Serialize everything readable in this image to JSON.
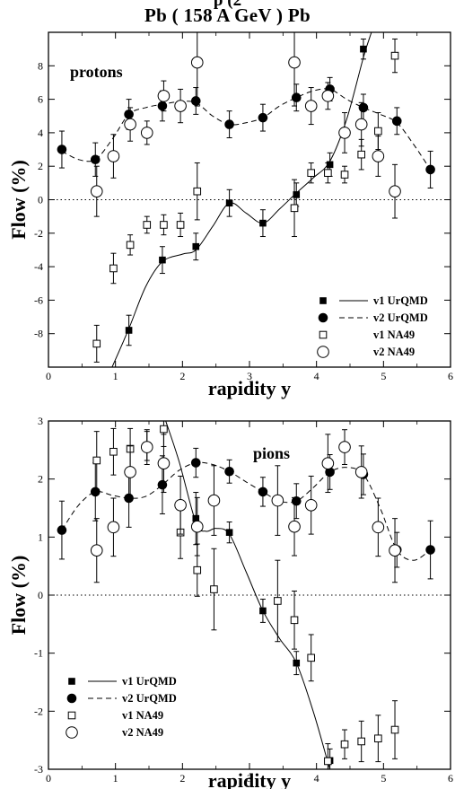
{
  "header": {
    "cut_text": "p        (2",
    "title": "Pb ( 158 A GeV ) Pb"
  },
  "chart_data": [
    {
      "type": "scatter",
      "title": "",
      "annotation": "protons",
      "xlabel": "rapidity y",
      "ylabel": "Flow (%)",
      "xlim": [
        0,
        6
      ],
      "ylim": [
        -10,
        10
      ],
      "xticks": [
        0,
        1,
        2,
        3,
        4,
        5,
        6
      ],
      "yticks": [
        -8,
        -6,
        -4,
        -2,
        0,
        2,
        4,
        6,
        8
      ],
      "zero_line": true,
      "legend_position": "bottom-right",
      "series": [
        {
          "name": "v1 UrQMD",
          "marker": "filled-square",
          "line": "solid",
          "points": [
            {
              "x": 1.2,
              "y": -7.8,
              "err": 0.9
            },
            {
              "x": 1.7,
              "y": -3.6,
              "err": 0.8
            },
            {
              "x": 2.2,
              "y": -2.8,
              "err": 0.8
            },
            {
              "x": 2.7,
              "y": -0.2,
              "err": 0.8
            },
            {
              "x": 3.2,
              "y": -1.4,
              "err": 0.8
            },
            {
              "x": 3.7,
              "y": 0.3,
              "err": 0.7
            },
            {
              "x": 4.2,
              "y": 2.1,
              "err": 0.7
            },
            {
              "x": 4.7,
              "y": 9.0,
              "err": 0.6
            }
          ],
          "curve": [
            [
              0.95,
              -10
            ],
            [
              1.2,
              -7.7
            ],
            [
              1.45,
              -5.2
            ],
            [
              1.7,
              -3.7
            ],
            [
              2.0,
              -3.25
            ],
            [
              2.2,
              -3.0
            ],
            [
              2.45,
              -1.6
            ],
            [
              2.7,
              -0.2
            ],
            [
              2.95,
              -0.8
            ],
            [
              3.2,
              -1.4
            ],
            [
              3.45,
              -0.55
            ],
            [
              3.7,
              0.4
            ],
            [
              3.95,
              1.3
            ],
            [
              4.2,
              2.3
            ],
            [
              4.45,
              4.8
            ],
            [
              4.7,
              8.5
            ],
            [
              4.82,
              10
            ]
          ]
        },
        {
          "name": "v2 UrQMD",
          "marker": "filled-circle",
          "line": "dashed",
          "points": [
            {
              "x": 0.2,
              "y": 3.0,
              "err": 1.1
            },
            {
              "x": 0.7,
              "y": 2.4,
              "err": 1.0
            },
            {
              "x": 1.2,
              "y": 5.1,
              "err": 0.9
            },
            {
              "x": 1.7,
              "y": 5.6,
              "err": 0.9
            },
            {
              "x": 2.2,
              "y": 5.9,
              "err": 0.8
            },
            {
              "x": 2.7,
              "y": 4.5,
              "err": 0.8
            },
            {
              "x": 3.2,
              "y": 4.9,
              "err": 0.8
            },
            {
              "x": 3.7,
              "y": 6.1,
              "err": 0.8
            },
            {
              "x": 4.2,
              "y": 6.6,
              "err": 0.7
            },
            {
              "x": 4.7,
              "y": 5.5,
              "err": 0.8
            },
            {
              "x": 5.2,
              "y": 4.7,
              "err": 0.8
            },
            {
              "x": 5.7,
              "y": 1.8,
              "err": 1.1
            }
          ],
          "curve": [
            [
              0.2,
              2.9
            ],
            [
              0.45,
              2.4
            ],
            [
              0.7,
              2.4
            ],
            [
              0.95,
              3.6
            ],
            [
              1.2,
              5.1
            ],
            [
              1.45,
              5.5
            ],
            [
              1.7,
              5.7
            ],
            [
              1.95,
              5.85
            ],
            [
              2.2,
              5.8
            ],
            [
              2.45,
              5.0
            ],
            [
              2.7,
              4.5
            ],
            [
              2.95,
              4.6
            ],
            [
              3.2,
              4.9
            ],
            [
              3.45,
              5.6
            ],
            [
              3.7,
              6.1
            ],
            [
              3.95,
              6.5
            ],
            [
              4.2,
              6.6
            ],
            [
              4.45,
              6.0
            ],
            [
              4.7,
              5.5
            ],
            [
              4.95,
              5.1
            ],
            [
              5.2,
              4.6
            ],
            [
              5.45,
              3.3
            ],
            [
              5.7,
              1.8
            ]
          ]
        },
        {
          "name": "v1 NA49",
          "marker": "open-square",
          "line": "none",
          "points": [
            {
              "x": 0.72,
              "y": -8.6,
              "err": 1.1
            },
            {
              "x": 0.97,
              "y": -4.1,
              "err": 0.9
            },
            {
              "x": 1.22,
              "y": -2.7,
              "err": 0.6
            },
            {
              "x": 1.47,
              "y": -1.5,
              "err": 0.5
            },
            {
              "x": 1.72,
              "y": -1.5,
              "err": 0.6
            },
            {
              "x": 1.97,
              "y": -1.5,
              "err": 0.7
            },
            {
              "x": 2.22,
              "y": 0.5,
              "err": 1.7
            },
            {
              "x": 3.67,
              "y": -0.5,
              "err": 1.7
            },
            {
              "x": 3.92,
              "y": 1.6,
              "err": 0.6
            },
            {
              "x": 4.17,
              "y": 1.6,
              "err": 0.6
            },
            {
              "x": 4.42,
              "y": 1.5,
              "err": 0.5
            },
            {
              "x": 4.67,
              "y": 2.7,
              "err": 0.9
            },
            {
              "x": 4.92,
              "y": 4.1,
              "err": 1.1
            },
            {
              "x": 5.17,
              "y": 8.6,
              "err": 1.0
            }
          ]
        },
        {
          "name": "v2 NA49",
          "marker": "open-circle",
          "line": "none",
          "points": [
            {
              "x": 0.72,
              "y": 0.5,
              "err": 1.5
            },
            {
              "x": 0.97,
              "y": 2.6,
              "err": 1.3
            },
            {
              "x": 1.22,
              "y": 4.5,
              "err": 1.0
            },
            {
              "x": 1.47,
              "y": 4.0,
              "err": 0.7
            },
            {
              "x": 1.72,
              "y": 6.2,
              "err": 0.9
            },
            {
              "x": 1.97,
              "y": 5.6,
              "err": 1.0
            },
            {
              "x": 2.22,
              "y": 8.2,
              "err": 2.6
            },
            {
              "x": 3.67,
              "y": 8.2,
              "err": 2.6
            },
            {
              "x": 3.92,
              "y": 5.6,
              "err": 1.1
            },
            {
              "x": 4.17,
              "y": 6.2,
              "err": 0.8
            },
            {
              "x": 4.42,
              "y": 4.0,
              "err": 1.2
            },
            {
              "x": 4.67,
              "y": 4.5,
              "err": 1.3
            },
            {
              "x": 4.92,
              "y": 2.6,
              "err": 1.2
            },
            {
              "x": 5.17,
              "y": 0.5,
              "err": 1.6
            }
          ]
        }
      ]
    },
    {
      "type": "scatter",
      "title": "",
      "annotation": "pions",
      "xlabel": "rapidity y",
      "ylabel": "Flow (%)",
      "xlim": [
        0,
        6
      ],
      "ylim": [
        -3,
        3
      ],
      "xticks": [
        0,
        1,
        2,
        3,
        4,
        5,
        6
      ],
      "yticks": [
        -3,
        -2,
        -1,
        0,
        1,
        2,
        3
      ],
      "zero_line": true,
      "legend_position": "bottom-left",
      "series": [
        {
          "name": "v1 UrQMD",
          "marker": "filled-square",
          "line": "solid",
          "points": [
            {
              "x": 2.2,
              "y": 1.32,
              "err": 0.45
            },
            {
              "x": 2.7,
              "y": 1.08,
              "err": 0.18
            },
            {
              "x": 3.2,
              "y": -0.27,
              "err": 0.2
            },
            {
              "x": 3.7,
              "y": -1.17,
              "err": 0.2
            },
            {
              "x": 4.2,
              "y": -2.85,
              "err": 0.2
            }
          ],
          "curve": [
            [
              1.75,
              3.0
            ],
            [
              1.95,
              2.3
            ],
            [
              2.2,
              1.25
            ],
            [
              2.35,
              1.1
            ],
            [
              2.5,
              1.15
            ],
            [
              2.7,
              1.05
            ],
            [
              2.95,
              0.4
            ],
            [
              3.2,
              -0.27
            ],
            [
              3.45,
              -0.75
            ],
            [
              3.7,
              -1.17
            ],
            [
              3.95,
              -2.0
            ],
            [
              4.15,
              -2.8
            ],
            [
              4.2,
              -3.0
            ]
          ]
        },
        {
          "name": "v2 UrQMD",
          "marker": "filled-circle",
          "line": "dashed",
          "points": [
            {
              "x": 0.2,
              "y": 1.12,
              "err": 0.5
            },
            {
              "x": 0.7,
              "y": 1.78,
              "err": 0.5
            },
            {
              "x": 1.2,
              "y": 1.67,
              "err": 0.5
            },
            {
              "x": 1.7,
              "y": 1.9,
              "err": 0.5
            },
            {
              "x": 2.2,
              "y": 2.28,
              "err": 0.25
            },
            {
              "x": 2.7,
              "y": 2.13,
              "err": 0.2
            },
            {
              "x": 3.2,
              "y": 1.78,
              "err": 0.25
            },
            {
              "x": 3.7,
              "y": 1.62,
              "err": 0.3
            },
            {
              "x": 4.2,
              "y": 2.12,
              "err": 0.3
            },
            {
              "x": 4.7,
              "y": 2.08,
              "err": 0.35
            },
            {
              "x": 5.2,
              "y": 0.78,
              "err": 0.3
            },
            {
              "x": 5.7,
              "y": 0.78,
              "err": 0.5
            }
          ],
          "curve": [
            [
              0.2,
              1.12
            ],
            [
              0.45,
              1.55
            ],
            [
              0.7,
              1.78
            ],
            [
              0.95,
              1.72
            ],
            [
              1.2,
              1.67
            ],
            [
              1.45,
              1.7
            ],
            [
              1.7,
              1.9
            ],
            [
              1.95,
              2.15
            ],
            [
              2.2,
              2.28
            ],
            [
              2.45,
              2.25
            ],
            [
              2.7,
              2.13
            ],
            [
              2.95,
              1.95
            ],
            [
              3.2,
              1.78
            ],
            [
              3.45,
              1.62
            ],
            [
              3.7,
              1.62
            ],
            [
              3.95,
              1.85
            ],
            [
              4.2,
              2.12
            ],
            [
              4.45,
              2.2
            ],
            [
              4.7,
              2.08
            ],
            [
              4.95,
              1.5
            ],
            [
              5.2,
              0.78
            ],
            [
              5.45,
              0.6
            ],
            [
              5.7,
              0.78
            ]
          ]
        },
        {
          "name": "v1 NA49",
          "marker": "open-square",
          "line": "none",
          "points": [
            {
              "x": 0.72,
              "y": 2.32,
              "err": 0.5
            },
            {
              "x": 0.97,
              "y": 2.47,
              "err": 0.4
            },
            {
              "x": 1.22,
              "y": 2.52,
              "err": 0.35
            },
            {
              "x": 1.47,
              "y": 2.57,
              "err": 0.25
            },
            {
              "x": 1.72,
              "y": 2.86,
              "err": 0.3
            },
            {
              "x": 1.97,
              "y": 1.08,
              "err": 0.45
            },
            {
              "x": 2.22,
              "y": 0.43,
              "err": 0.45
            },
            {
              "x": 2.47,
              "y": 0.1,
              "err": 0.7
            },
            {
              "x": 3.42,
              "y": -0.1,
              "err": 0.7
            },
            {
              "x": 3.67,
              "y": -0.43,
              "err": 0.5
            },
            {
              "x": 3.92,
              "y": -1.08,
              "err": 0.4
            },
            {
              "x": 4.17,
              "y": -2.86,
              "err": 0.3
            },
            {
              "x": 4.42,
              "y": -2.57,
              "err": 0.25
            },
            {
              "x": 4.67,
              "y": -2.52,
              "err": 0.35
            },
            {
              "x": 4.92,
              "y": -2.47,
              "err": 0.4
            },
            {
              "x": 5.17,
              "y": -2.32,
              "err": 0.5
            }
          ]
        },
        {
          "name": "v2 NA49",
          "marker": "open-circle",
          "line": "none",
          "points": [
            {
              "x": 0.72,
              "y": 0.77,
              "err": 0.55
            },
            {
              "x": 0.97,
              "y": 1.17,
              "err": 0.5
            },
            {
              "x": 1.22,
              "y": 2.12,
              "err": 0.45
            },
            {
              "x": 1.47,
              "y": 2.55,
              "err": 0.3
            },
            {
              "x": 1.72,
              "y": 2.27,
              "err": 0.5
            },
            {
              "x": 1.97,
              "y": 1.55,
              "err": 0.5
            },
            {
              "x": 2.22,
              "y": 1.18,
              "err": 0.5
            },
            {
              "x": 2.47,
              "y": 1.63,
              "err": 0.6
            },
            {
              "x": 3.42,
              "y": 1.63,
              "err": 0.6
            },
            {
              "x": 3.67,
              "y": 1.18,
              "err": 0.5
            },
            {
              "x": 3.92,
              "y": 1.55,
              "err": 0.5
            },
            {
              "x": 4.17,
              "y": 2.27,
              "err": 0.5
            },
            {
              "x": 4.42,
              "y": 2.55,
              "err": 0.3
            },
            {
              "x": 4.67,
              "y": 2.12,
              "err": 0.45
            },
            {
              "x": 4.92,
              "y": 1.17,
              "err": 0.5
            },
            {
              "x": 5.17,
              "y": 0.77,
              "err": 0.55
            }
          ]
        }
      ]
    }
  ]
}
